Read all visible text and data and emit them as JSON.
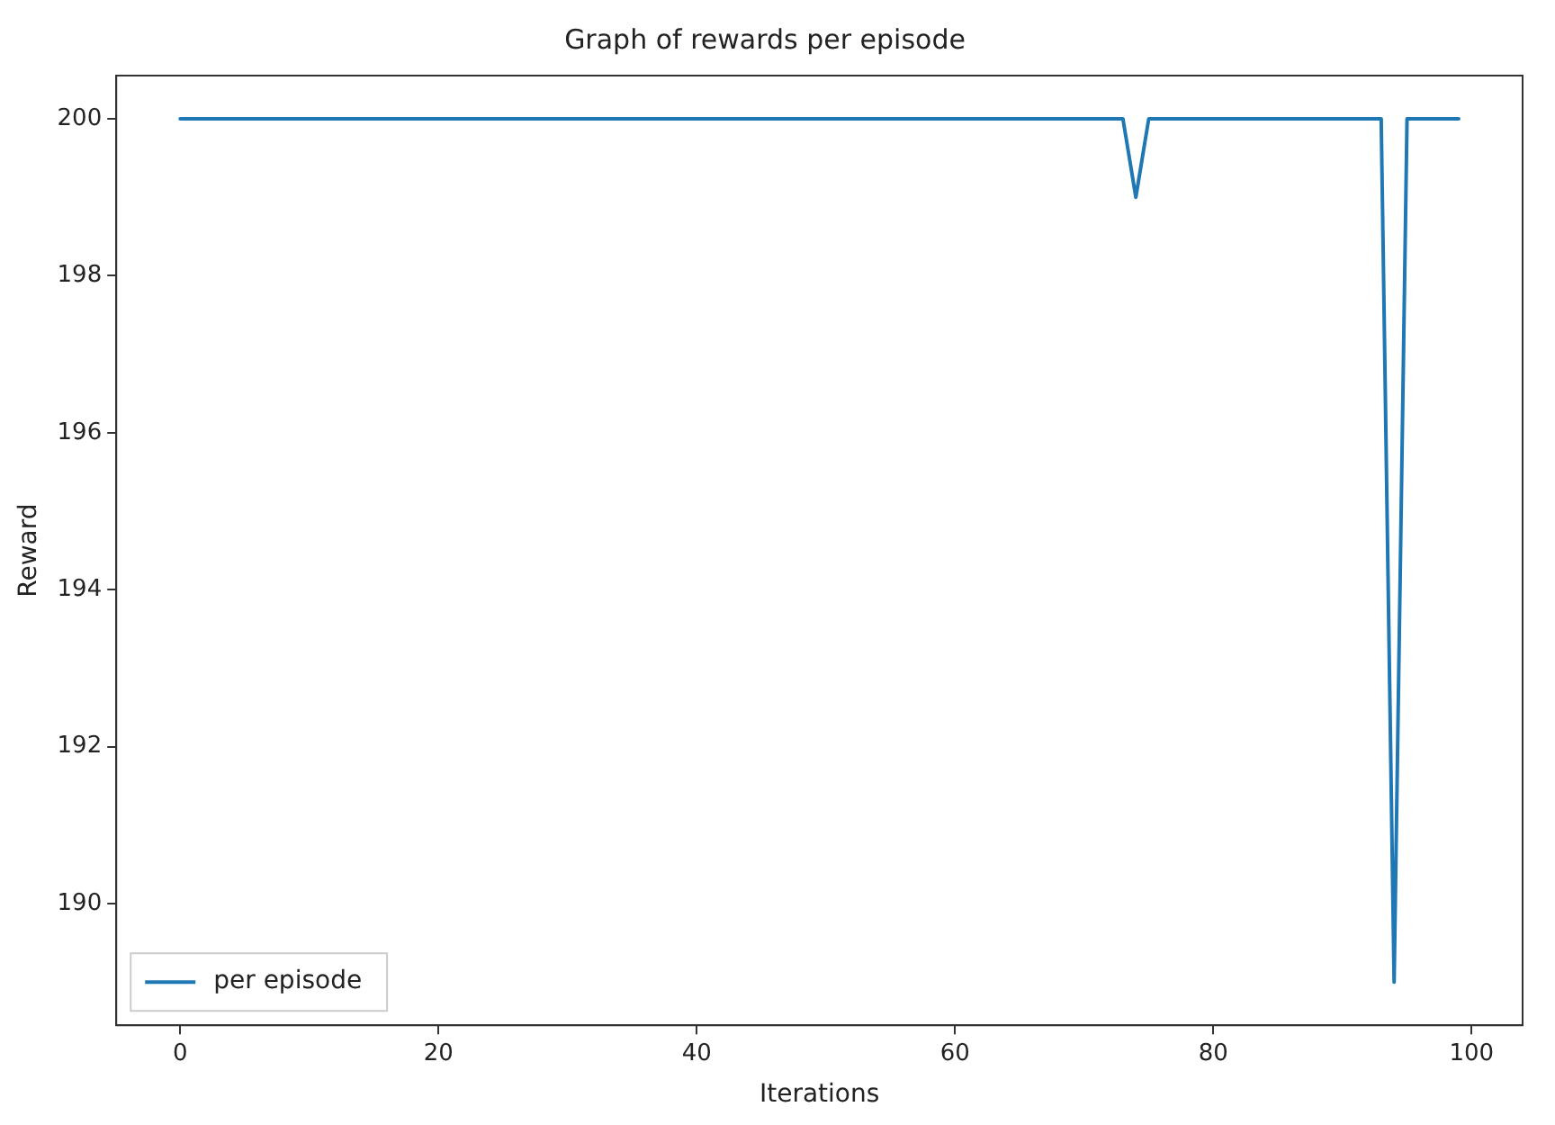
{
  "chart_data": {
    "type": "line",
    "title": "Graph of rewards per episode",
    "xlabel": "Iterations",
    "ylabel": "Reward",
    "x": [
      0,
      1,
      2,
      3,
      4,
      5,
      6,
      7,
      8,
      9,
      10,
      11,
      12,
      13,
      14,
      15,
      16,
      17,
      18,
      19,
      20,
      21,
      22,
      23,
      24,
      25,
      26,
      27,
      28,
      29,
      30,
      31,
      32,
      33,
      34,
      35,
      36,
      37,
      38,
      39,
      40,
      41,
      42,
      43,
      44,
      45,
      46,
      47,
      48,
      49,
      50,
      51,
      52,
      53,
      54,
      55,
      56,
      57,
      58,
      59,
      60,
      61,
      62,
      63,
      64,
      65,
      66,
      67,
      68,
      69,
      70,
      71,
      72,
      73,
      74,
      75,
      76,
      77,
      78,
      79,
      80,
      81,
      82,
      83,
      84,
      85,
      86,
      87,
      88,
      89,
      90,
      91,
      92,
      93,
      94,
      95,
      96,
      97,
      98,
      99
    ],
    "series": [
      {
        "name": "per episode",
        "color": "#1f77b4",
        "values": [
          200,
          200,
          200,
          200,
          200,
          200,
          200,
          200,
          200,
          200,
          200,
          200,
          200,
          200,
          200,
          200,
          200,
          200,
          200,
          200,
          200,
          200,
          200,
          200,
          200,
          200,
          200,
          200,
          200,
          200,
          200,
          200,
          200,
          200,
          200,
          200,
          200,
          200,
          200,
          200,
          200,
          200,
          200,
          200,
          200,
          200,
          200,
          200,
          200,
          200,
          200,
          200,
          200,
          200,
          200,
          200,
          200,
          200,
          200,
          200,
          200,
          200,
          200,
          200,
          200,
          200,
          200,
          200,
          200,
          200,
          200,
          200,
          200,
          200,
          199,
          200,
          200,
          200,
          200,
          200,
          200,
          200,
          200,
          200,
          200,
          200,
          200,
          200,
          200,
          200,
          200,
          200,
          200,
          200,
          189,
          200,
          200,
          200,
          200,
          200
        ]
      }
    ],
    "xlim": [
      -4.95,
      103.95
    ],
    "ylim": [
      188.45,
      200.55
    ],
    "xticks": [
      0,
      20,
      40,
      60,
      80,
      100
    ],
    "yticks": [
      190,
      192,
      194,
      196,
      198,
      200
    ],
    "grid": false,
    "legend": "bottom left",
    "marker": "none",
    "line_style": "solid"
  }
}
